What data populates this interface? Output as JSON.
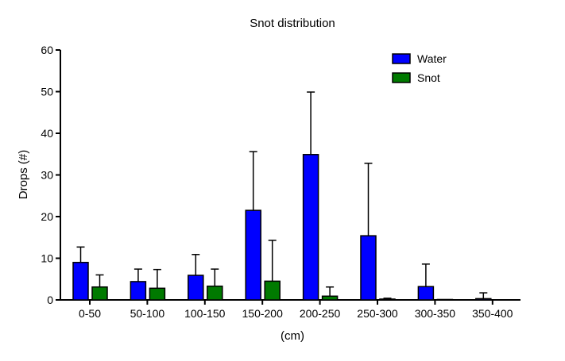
{
  "chart_data": {
    "type": "bar",
    "title": "Snot distribution",
    "xlabel": "(cm)",
    "ylabel": "Drops (#)",
    "ylim": [
      0,
      60
    ],
    "yticks": [
      0,
      10,
      20,
      30,
      40,
      50,
      60
    ],
    "categories": [
      "0-50",
      "50-100",
      "100-150",
      "150-200",
      "200-250",
      "250-300",
      "300-350",
      "350-400"
    ],
    "series": [
      {
        "name": "Water",
        "color": "#0000ff",
        "values": [
          9.0,
          4.4,
          5.9,
          21.5,
          34.9,
          15.4,
          3.2,
          0.3
        ],
        "error_upper": [
          12.7,
          7.4,
          10.9,
          35.6,
          49.9,
          32.8,
          8.6,
          1.7
        ]
      },
      {
        "name": "Snot",
        "color": "#007a00",
        "values": [
          3.1,
          2.8,
          3.3,
          4.5,
          0.9,
          0.2,
          0.1,
          0
        ],
        "error_upper": [
          6.0,
          7.3,
          7.4,
          14.3,
          3.1,
          0.4,
          0.1,
          0
        ]
      }
    ],
    "grid": false,
    "legend": "top-right"
  }
}
